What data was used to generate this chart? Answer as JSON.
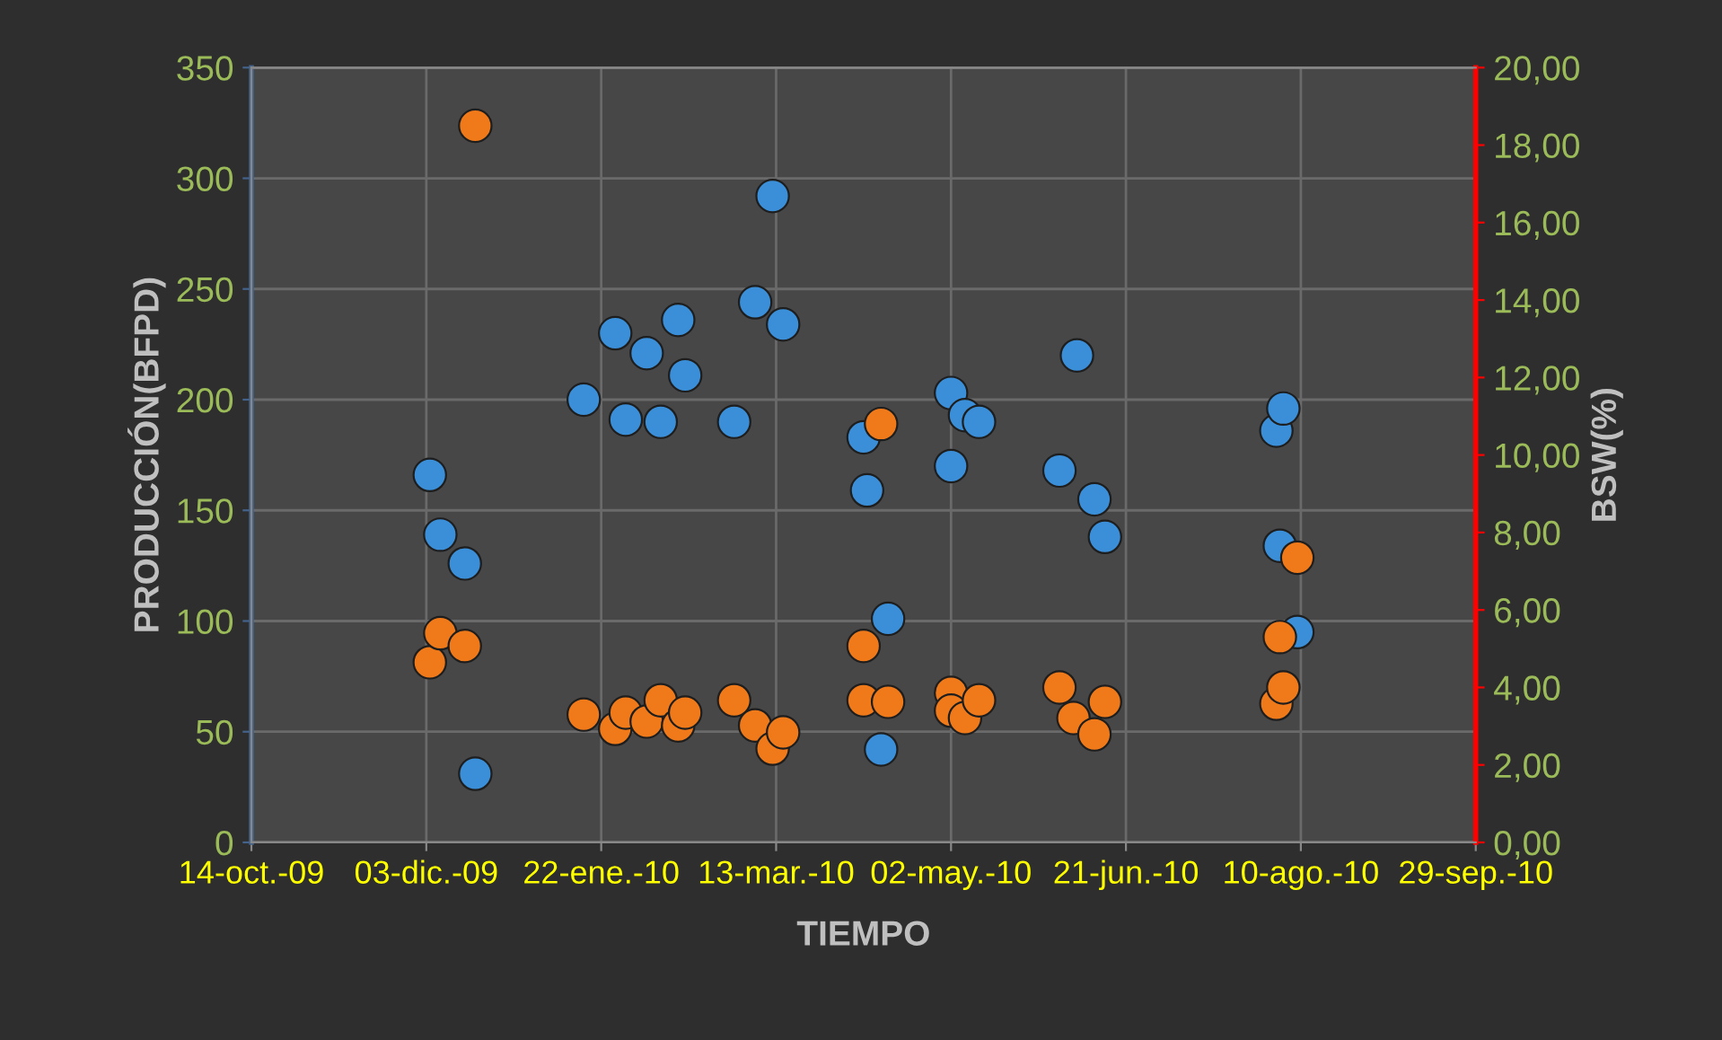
{
  "chart_data": {
    "type": "scatter",
    "xlabel": "TIEMPO",
    "ylabel": "PRODUCCIÓN(BFPD)",
    "y2label": "BSW(%)",
    "xlim": [
      "2009-10-14",
      "2010-09-29"
    ],
    "xticks": [
      {
        "value": "2009-10-14",
        "label": "14-oct.-09"
      },
      {
        "value": "2009-12-03",
        "label": "03-dic.-09"
      },
      {
        "value": "2010-01-22",
        "label": "22-ene.-10"
      },
      {
        "value": "2010-03-13",
        "label": "13-mar.-10"
      },
      {
        "value": "2010-05-02",
        "label": "02-may.-10"
      },
      {
        "value": "2010-06-21",
        "label": "21-jun.-10"
      },
      {
        "value": "2010-08-10",
        "label": "10-ago.-10"
      },
      {
        "value": "2010-09-29",
        "label": "29-sep.-10"
      }
    ],
    "ylim": [
      0,
      350
    ],
    "yticks": [
      0,
      50,
      100,
      150,
      200,
      250,
      300,
      350
    ],
    "y2lim": [
      0,
      20
    ],
    "y2ticks": [
      {
        "value": 0,
        "label": "0,00"
      },
      {
        "value": 2,
        "label": "2,00"
      },
      {
        "value": 4,
        "label": "4,00"
      },
      {
        "value": 6,
        "label": "6,00"
      },
      {
        "value": 8,
        "label": "8,00"
      },
      {
        "value": 10,
        "label": "10,00"
      },
      {
        "value": 12,
        "label": "12,00"
      },
      {
        "value": 14,
        "label": "14,00"
      },
      {
        "value": 16,
        "label": "16,00"
      },
      {
        "value": 18,
        "label": "18,00"
      },
      {
        "value": 20,
        "label": "20,00"
      }
    ],
    "grid": true,
    "marker": "circle",
    "series": [
      {
        "color": "#3a8fd8",
        "x": [
          "2009-12-04",
          "2009-12-07",
          "2009-12-14",
          "2009-12-17",
          "2010-01-17",
          "2010-01-26",
          "2010-01-29",
          "2010-02-04",
          "2010-02-08",
          "2010-02-13",
          "2010-02-15",
          "2010-03-01",
          "2010-03-07",
          "2010-03-12",
          "2010-03-15",
          "2010-04-07",
          "2010-04-08",
          "2010-04-14",
          "2010-04-12",
          "2010-05-02",
          "2010-05-06",
          "2010-05-10",
          "2010-05-02",
          "2010-06-02",
          "2010-06-07",
          "2010-06-12",
          "2010-06-15",
          "2010-08-03",
          "2010-08-05",
          "2010-08-04",
          "2010-08-09"
        ],
        "values": [
          166,
          139,
          126,
          31,
          200,
          230,
          191,
          221,
          190,
          236,
          211,
          190,
          244,
          292,
          234,
          183,
          159,
          101,
          42,
          203,
          193,
          190,
          170,
          168,
          220,
          155,
          138,
          186,
          196,
          134,
          95
        ]
      },
      {
        "color": "#f07a1a",
        "axis": "y2",
        "x": [
          "2009-12-17",
          "2009-12-04",
          "2009-12-07",
          "2009-12-14",
          "2010-01-17",
          "2010-01-26",
          "2010-01-29",
          "2010-02-04",
          "2010-02-08",
          "2010-02-13",
          "2010-02-15",
          "2010-03-01",
          "2010-03-07",
          "2010-03-12",
          "2010-03-15",
          "2010-04-07",
          "2010-04-07",
          "2010-04-14",
          "2010-04-12",
          "2010-05-02",
          "2010-05-02",
          "2010-05-06",
          "2010-05-10",
          "2010-06-02",
          "2010-06-06",
          "2010-06-12",
          "2010-06-15",
          "2010-08-03",
          "2010-08-05",
          "2010-08-04",
          "2010-08-09"
        ],
        "values": [
          18.5,
          4.65,
          5.4,
          5.07,
          3.3,
          2.93,
          3.35,
          3.12,
          3.67,
          3.02,
          3.35,
          3.67,
          3.02,
          2.42,
          2.84,
          5.07,
          3.67,
          3.63,
          10.8,
          3.86,
          3.4,
          3.21,
          3.67,
          4.0,
          3.21,
          2.79,
          3.63,
          3.58,
          4.0,
          5.3,
          7.35
        ]
      }
    ]
  }
}
